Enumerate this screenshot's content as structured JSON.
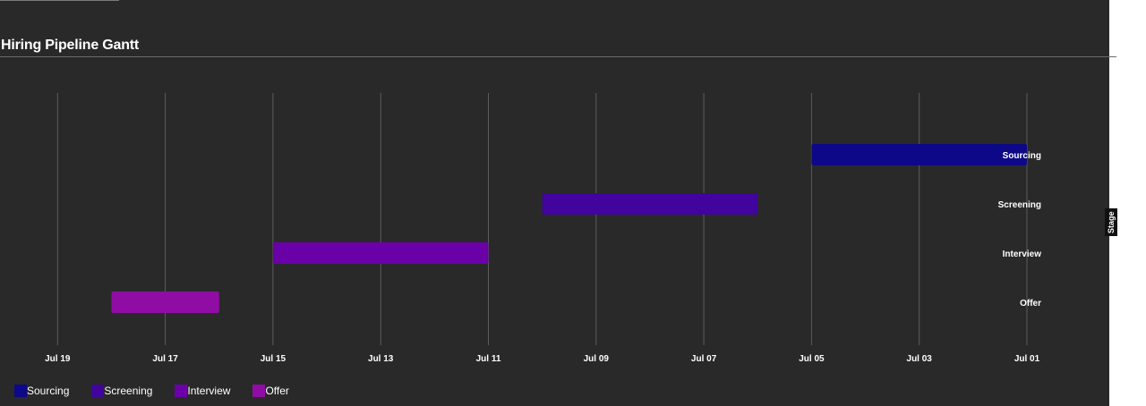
{
  "chart_data": {
    "type": "gantt",
    "title": "Hiring Pipeline Gantt",
    "ylabel": "Stage",
    "x_axis": {
      "reversed": true,
      "ticks": [
        "Jul 19",
        "Jul 17",
        "Jul 15",
        "Jul 13",
        "Jul 11",
        "Jul 09",
        "Jul 07",
        "Jul 05",
        "Jul 03",
        "Jul 01"
      ],
      "grid": true
    },
    "tasks": [
      {
        "name": "Sourcing",
        "label": "Sourcing",
        "start": "Jul 01",
        "end": "Jul 05",
        "color": "#0d0887"
      },
      {
        "name": "Screening",
        "label": "Screening",
        "start": "Jul 06",
        "end": "Jul 10",
        "color": "#41049d"
      },
      {
        "name": "Interview",
        "label": "Interview",
        "start": "Jul 11",
        "end": "Jul 15",
        "color": "#6a00a8"
      },
      {
        "name": "Offer",
        "label": "Offer",
        "start": "Jul 16",
        "end": "Jul 18",
        "color": "#8f0da4"
      }
    ],
    "legend": {
      "position": "bottom-left",
      "entries": [
        {
          "label": "Sourcing",
          "color": "#0d0887"
        },
        {
          "label": "Screening",
          "color": "#41049d"
        },
        {
          "label": "Interview",
          "color": "#6a00a8"
        },
        {
          "label": "Offer",
          "color": "#8f0da4"
        }
      ]
    }
  }
}
